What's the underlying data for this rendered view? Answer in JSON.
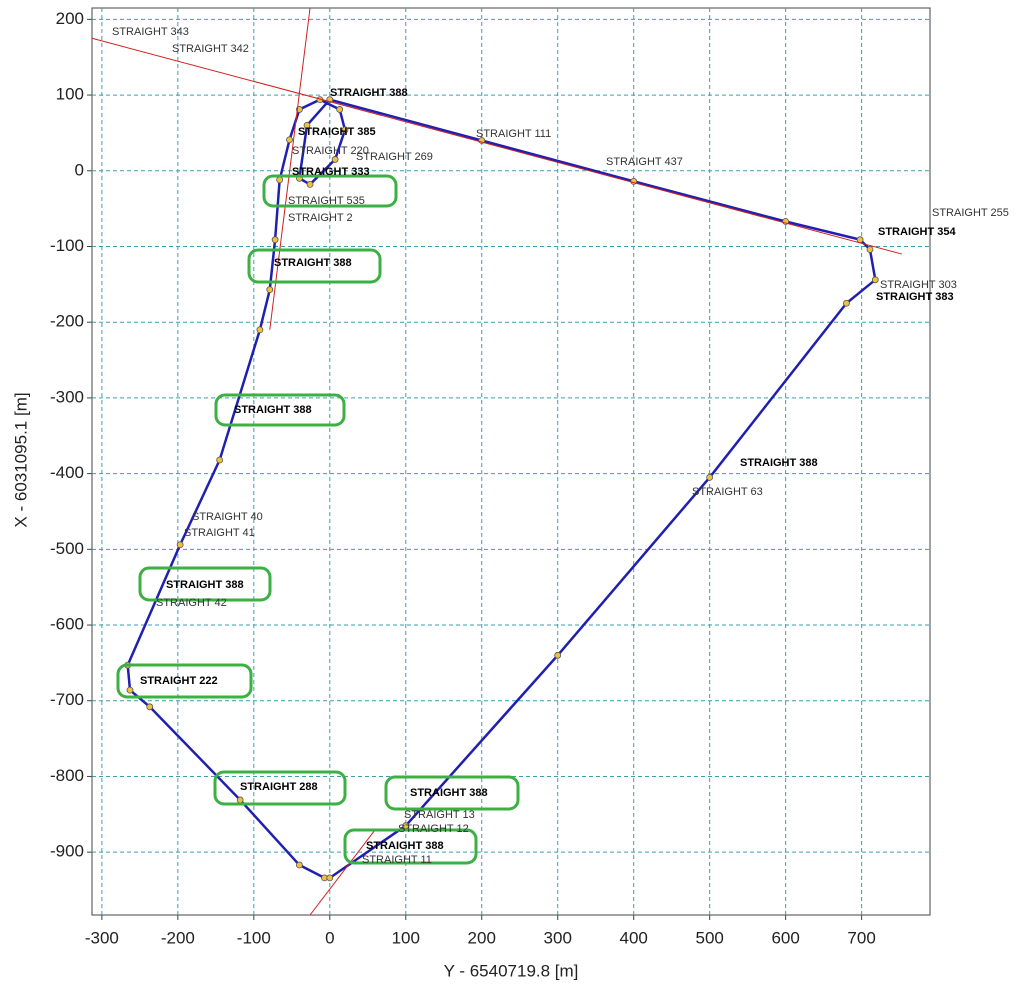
{
  "chart_data": {
    "type": "line",
    "xlabel": "Y - 6540719.8 [m]",
    "ylabel": "X - 6031095.1 [m]",
    "xlim": [
      -313,
      790
    ],
    "ylim": [
      -983,
      215
    ],
    "xticks": [
      -300,
      -200,
      -100,
      0,
      100,
      200,
      300,
      400,
      500,
      600,
      700
    ],
    "yticks": [
      -900,
      -800,
      -700,
      -600,
      -500,
      -400,
      -300,
      -200,
      -100,
      0,
      100,
      200
    ],
    "grid": true,
    "series": [
      {
        "color": "#2020b0",
        "x": [
          -7,
          -40,
          -118,
          -237,
          -263,
          -266,
          -197,
          -145,
          -92,
          -79,
          -72,
          -66,
          -53,
          -40,
          -13,
          13,
          20,
          7,
          -26,
          -40,
          -30,
          0,
          200,
          400,
          600,
          698,
          711,
          718,
          680,
          500,
          300,
          100,
          0
        ],
        "values": [
          -934,
          -917,
          -831,
          -708,
          -686,
          -653,
          -494,
          -382,
          -210,
          -157,
          -91,
          -12,
          41,
          81,
          94,
          81,
          54,
          15,
          -18,
          -10,
          60,
          94,
          40,
          -14,
          -67,
          -91,
          -104,
          -144,
          -175,
          -405,
          -640,
          -865,
          -934
        ]
      },
      {
        "color": "#d02020",
        "x": [
          -313,
          753
        ],
        "values": [
          175,
          -110
        ]
      },
      {
        "color": "#d02020",
        "x": [
          -26,
          -79
        ],
        "values": [
          215,
          -210
        ]
      },
      {
        "color": "#d02020",
        "x": [
          -26,
          60
        ],
        "values": [
          -983,
          -870
        ]
      }
    ],
    "annotations": [
      "STRAIGHT 343",
      "STRAIGHT 342",
      "STRAIGHT 388",
      "STRAIGHT 385",
      "STRAIGHT 220",
      "STRAIGHT 269",
      "STRAIGHT 333",
      "STRAIGHT 535",
      "STRAIGHT 2",
      "STRAIGHT 388",
      "STRAIGHT 388",
      "STRAIGHT 40",
      "STRAIGHT 41",
      "STRAIGHT 388",
      "STRAIGHT 42",
      "STRAIGHT 222",
      "STRAIGHT 288",
      "STRAIGHT 388",
      "STRAIGHT 13",
      "STRAIGHT 12",
      "STRAIGHT 388",
      "STRAIGHT 11",
      "STRAIGHT 437",
      "STRAIGHT 255",
      "STRAIGHT 354",
      "STRAIGHT 303",
      "STRAIGHT 383",
      "STRAIGHT 63",
      "STRAIGHT 388",
      "STRAIGHT 111"
    ]
  }
}
